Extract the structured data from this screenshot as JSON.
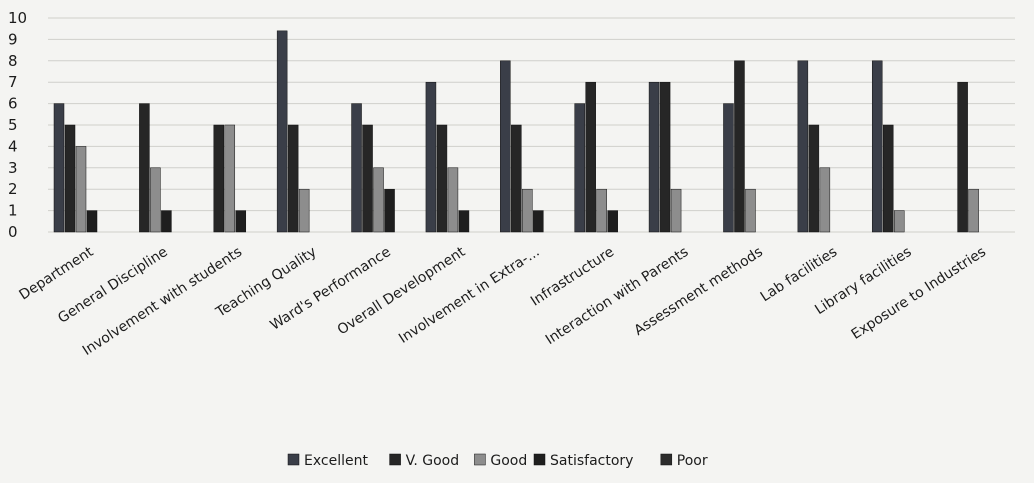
{
  "chart_data": {
    "type": "bar",
    "title": "",
    "xlabel": "",
    "ylabel": "",
    "ylim": [
      0,
      10
    ],
    "yticks": [
      0,
      1,
      2,
      3,
      4,
      5,
      6,
      7,
      8,
      9,
      10
    ],
    "grid": true,
    "legend_position": "bottom",
    "categories": [
      "Department",
      "General Discipline",
      "Involvement with students",
      "Teaching Quality",
      "Ward's Performance",
      "Overall Development",
      "Involvement in Extra-...",
      "Infrastructure",
      "Interaction with Parents",
      "Assessment methods",
      "Lab facilities",
      "Library facilities",
      "Exposure to Industries"
    ],
    "series": [
      {
        "name": "Excellent",
        "color": "#3a3e48",
        "values": [
          6,
          0,
          0,
          9.4,
          6,
          7,
          8,
          6,
          7,
          6,
          8,
          8,
          0
        ]
      },
      {
        "name": "V. Good",
        "color": "#262626",
        "values": [
          5,
          6,
          5,
          5,
          5,
          5,
          5,
          7,
          7,
          8,
          5,
          5,
          7
        ]
      },
      {
        "name": "Good",
        "color": "#8d8d8d",
        "values": [
          4,
          3,
          5,
          2,
          3,
          3,
          2,
          2,
          2,
          2,
          3,
          1,
          2
        ]
      },
      {
        "name": "Satisfactory",
        "color": "#1e1e1e",
        "values": [
          1,
          1,
          1,
          0,
          2,
          1,
          1,
          1,
          0,
          0,
          0,
          0,
          0
        ]
      },
      {
        "name": "Poor",
        "color": "#2c2c2c",
        "values": [
          0,
          0,
          0,
          0,
          0,
          0,
          0,
          0,
          0,
          0,
          0,
          0,
          0
        ]
      }
    ]
  }
}
